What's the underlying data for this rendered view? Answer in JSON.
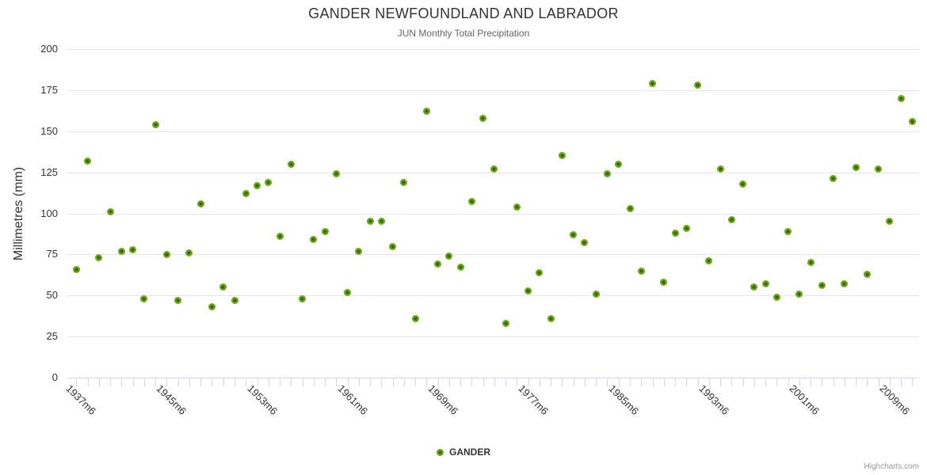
{
  "header": {
    "title": "GANDER NEWFOUNDLAND AND LABRADOR",
    "subtitle": "JUN Monthly Total Precipitation"
  },
  "legend": {
    "label": "GANDER"
  },
  "credits": {
    "label": "Highcharts.com"
  },
  "colors": {
    "marker_outer": "#6aa70c",
    "marker_inner": "#2e6504",
    "gridline": "#e6e6e6",
    "axis_line": "#ccd6eb",
    "title_text": "#333333",
    "subtitle_text": "#666666",
    "credits_text": "#999999"
  },
  "chart_data": {
    "type": "scatter",
    "title": "GANDER NEWFOUNDLAND AND LABRADOR",
    "subtitle": "JUN Monthly Total Precipitation",
    "xlabel": "",
    "ylabel": "Millimetres (mm)",
    "ylim": [
      0,
      200
    ],
    "yticks": [
      0,
      25,
      50,
      75,
      100,
      125,
      150,
      175,
      200
    ],
    "xlim": [
      1936.2,
      2011.6
    ],
    "grid": true,
    "legend_position": "bottom-center",
    "xticks": [
      {
        "x": 1937,
        "label": "1937m6"
      },
      {
        "x": 1945,
        "label": "1945m6"
      },
      {
        "x": 1953,
        "label": "1953m6"
      },
      {
        "x": 1961,
        "label": "1961m6"
      },
      {
        "x": 1969,
        "label": "1969m6"
      },
      {
        "x": 1977,
        "label": "1977m6"
      },
      {
        "x": 1985,
        "label": "1985m6"
      },
      {
        "x": 1993,
        "label": "1993m6"
      },
      {
        "x": 2001,
        "label": "2001m6"
      },
      {
        "x": 2009,
        "label": "2009m6"
      }
    ],
    "x_minor_ticks": {
      "start": 1937,
      "end": 2011,
      "step": 1
    },
    "series": [
      {
        "name": "GANDER",
        "color": "#6aa70c",
        "marker_inner_color": "#2e6504",
        "x": [
          1937,
          1938,
          1939,
          1940,
          1941,
          1942,
          1943,
          1944,
          1945,
          1946,
          1947,
          1948,
          1949,
          1950,
          1951,
          1952,
          1953,
          1954,
          1955,
          1956,
          1957,
          1958,
          1959,
          1960,
          1961,
          1962,
          1963,
          1964,
          1965,
          1966,
          1967,
          1968,
          1969,
          1970,
          1971,
          1972,
          1973,
          1974,
          1975,
          1976,
          1977,
          1978,
          1979,
          1980,
          1981,
          1982,
          1983,
          1984,
          1985,
          1986,
          1987,
          1988,
          1989,
          1990,
          1991,
          1992,
          1993,
          1994,
          1995,
          1996,
          1997,
          1998,
          1999,
          2000,
          2001,
          2002,
          2003,
          2004,
          2005,
          2006,
          2007,
          2008,
          2009,
          2010,
          2011
        ],
        "y": [
          66,
          132,
          73,
          101,
          77,
          78,
          48,
          154,
          75,
          47,
          76,
          106,
          43,
          55,
          47,
          112,
          117,
          119,
          86,
          130,
          48,
          84,
          89,
          124,
          52,
          77,
          95,
          95,
          80,
          119,
          36,
          162,
          69,
          74,
          67,
          107,
          158,
          127,
          33,
          104,
          53,
          64,
          36,
          135,
          87,
          82,
          51,
          124,
          130,
          103,
          65,
          179,
          58,
          88,
          91,
          178,
          71,
          127,
          96,
          118,
          55,
          57,
          49,
          89,
          51,
          70,
          56,
          121,
          57,
          128,
          63,
          127,
          95,
          170,
          156
        ]
      }
    ]
  }
}
